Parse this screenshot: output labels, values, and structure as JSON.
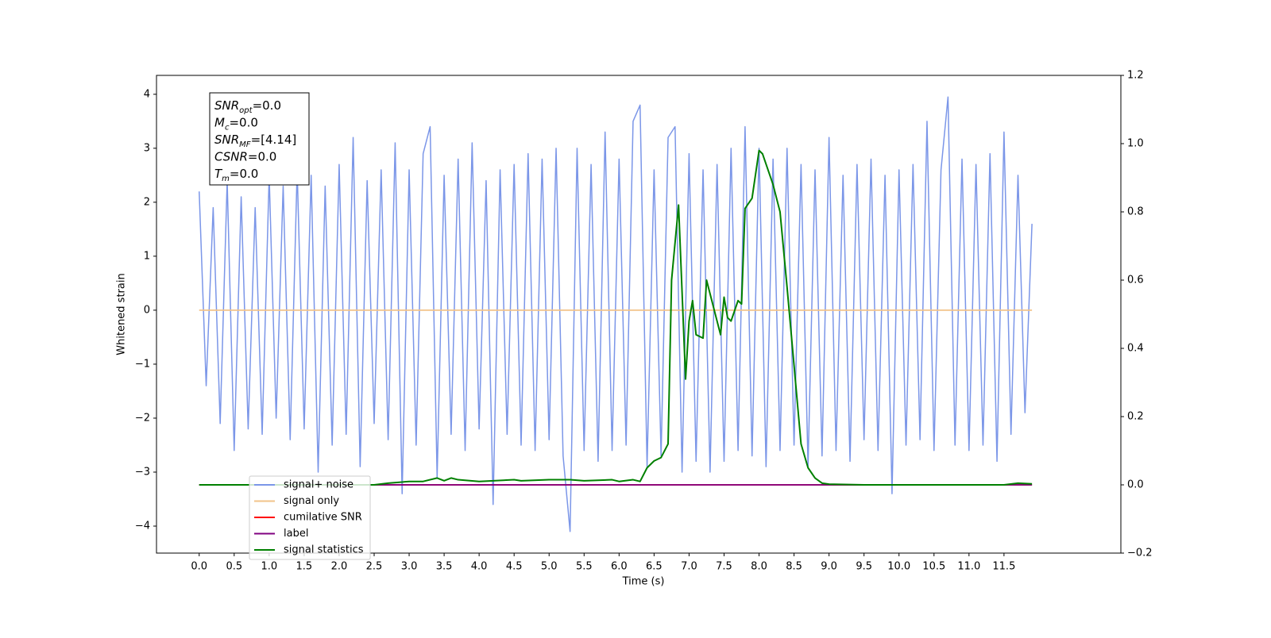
{
  "chart_data": {
    "type": "line",
    "xlabel": "Time (s)",
    "ylabel": "Whitened strain",
    "xlim": [
      -0.61,
      13.17
    ],
    "ylim": [
      -4.5,
      4.35
    ],
    "y2lim": [
      -0.2,
      1.2
    ],
    "xticks": [
      {
        "value": 0,
        "label": "0.0"
      },
      0.5,
      {
        "value": 1,
        "label": "1.0"
      },
      1.5,
      {
        "value": 2,
        "label": "2.0"
      },
      2.5,
      {
        "value": 3,
        "label": "3.0"
      },
      3.5,
      {
        "value": 4,
        "label": "4.0"
      },
      4.5,
      {
        "value": 5,
        "label": "5.0"
      },
      5.5,
      {
        "value": 6,
        "label": "6.0"
      },
      6.5,
      {
        "value": 7,
        "label": "7.0"
      },
      7.5,
      {
        "value": 8,
        "label": "8.0"
      },
      8.5,
      {
        "value": 9,
        "label": "9.0"
      },
      9.5,
      {
        "value": 10,
        "label": "10.0"
      },
      10.5,
      {
        "value": 11,
        "label": "11.0"
      },
      11.5
    ],
    "yticks": [
      {
        "value": -4,
        "label": "−4"
      },
      {
        "value": -3,
        "label": "−3"
      },
      {
        "value": -2,
        "label": "−2"
      },
      {
        "value": -1,
        "label": "−1"
      },
      0,
      1,
      2,
      3,
      4
    ],
    "y2ticks": [
      {
        "value": -0.2,
        "label": "−0.2"
      },
      {
        "value": 0,
        "label": "0.0"
      },
      0.2,
      0.4,
      0.6,
      0.8,
      {
        "value": 1,
        "label": "1.0"
      },
      1.2
    ],
    "legend_loc": "lower left",
    "annotation": [
      {
        "base": "SNR",
        "sub": "opt",
        "text": "=0.0"
      },
      {
        "base": "M",
        "sub": "c",
        "text": "=0.0"
      },
      {
        "base": "SNR",
        "sub": "MF",
        "text": "=[4.14]"
      },
      {
        "base": "CSNR",
        "text": "=0.0"
      },
      {
        "base": "T",
        "sub": "m",
        "text": "=0.0"
      }
    ],
    "series": [
      {
        "name": "signal+ noise",
        "color": "#7b96e8",
        "x": [
          0,
          0.1,
          0.2,
          0.3,
          0.4,
          0.5,
          0.6,
          0.7,
          0.8,
          0.9,
          1,
          1.1,
          1.2,
          1.3,
          1.4,
          1.5,
          1.6,
          1.7,
          1.8,
          1.9,
          2,
          2.1,
          2.2,
          2.3,
          2.4,
          2.5,
          2.6,
          2.7,
          2.8,
          2.9,
          3,
          3.1,
          3.2,
          3.3,
          3.4,
          3.5,
          3.6,
          3.7,
          3.8,
          3.9,
          4,
          4.1,
          4.2,
          4.3,
          4.4,
          4.5,
          4.6,
          4.7,
          4.8,
          4.9,
          5,
          5.1,
          5.2,
          5.3,
          5.4,
          5.5,
          5.6,
          5.7,
          5.8,
          5.9,
          6,
          6.1,
          6.2,
          6.3,
          6.4,
          6.5,
          6.6,
          6.7,
          6.8,
          6.9,
          7,
          7.1,
          7.2,
          7.3,
          7.4,
          7.5,
          7.6,
          7.7,
          7.8,
          7.9,
          8,
          8.1,
          8.2,
          8.3,
          8.4,
          8.5,
          8.6,
          8.7,
          8.8,
          8.9,
          9,
          9.1,
          9.2,
          9.3,
          9.4,
          9.5,
          9.6,
          9.7,
          9.8,
          9.9,
          10,
          10.1,
          10.2,
          10.3,
          10.4,
          10.5,
          10.6,
          10.7,
          10.8,
          10.9,
          11,
          11.1,
          11.2,
          11.3,
          11.4,
          11.5,
          11.6,
          11.7,
          11.8,
          11.9
        ],
        "values": [
          2.2,
          -1.4,
          1.9,
          -2.1,
          2.4,
          -2.6,
          2.1,
          -2.2,
          1.9,
          -2.3,
          2.5,
          -2.0,
          2.3,
          -2.4,
          2.6,
          -2.2,
          2.5,
          -3.0,
          2.3,
          -2.5,
          2.7,
          -2.3,
          3.2,
          -2.9,
          2.4,
          -2.1,
          2.6,
          -2.4,
          3.1,
          -3.4,
          2.6,
          -2.5,
          2.9,
          3.4,
          -3.1,
          2.5,
          -2.3,
          2.8,
          -2.6,
          3.1,
          -2.2,
          2.4,
          -3.6,
          2.6,
          -2.3,
          2.7,
          -2.5,
          2.9,
          -2.6,
          2.8,
          -2.4,
          3.0,
          -2.7,
          -4.1,
          3.0,
          -2.6,
          2.7,
          -2.8,
          3.3,
          -2.6,
          2.8,
          -2.5,
          3.5,
          3.8,
          -2.9,
          2.6,
          -2.7,
          3.2,
          3.4,
          -3.0,
          2.9,
          -2.8,
          2.6,
          -3.0,
          2.7,
          -2.8,
          3.0,
          -2.6,
          3.4,
          -2.7,
          3.0,
          -2.9,
          2.8,
          -2.6,
          3.0,
          -2.5,
          2.7,
          -2.9,
          2.6,
          -2.7,
          3.2,
          -2.6,
          2.5,
          -2.8,
          2.7,
          -2.4,
          2.8,
          -2.6,
          2.5,
          -3.4,
          2.6,
          -2.5,
          2.7,
          -2.4,
          3.5,
          -2.6,
          2.6,
          3.95,
          -2.5,
          2.8,
          -2.6,
          2.7,
          -2.5,
          2.9,
          -2.8,
          3.3,
          -2.3,
          2.5,
          -1.9,
          1.6
        ]
      },
      {
        "name": "signal only",
        "color": "#f2c38a",
        "x": [
          0,
          11.9
        ],
        "values": [
          0,
          0
        ]
      },
      {
        "name": "cumilative SNR",
        "color": "#ff0000",
        "axis": "y2",
        "x": [
          0,
          11.9
        ],
        "values": [
          0,
          0
        ]
      },
      {
        "name": "label",
        "color": "#800080",
        "axis": "y2",
        "x": [
          0,
          11.9
        ],
        "values": [
          0,
          0
        ]
      },
      {
        "name": "signal statistics",
        "color": "#008000",
        "axis": "y2",
        "x": [
          0,
          0.5,
          1,
          1.5,
          2,
          2.5,
          2.7,
          3.0,
          3.2,
          3.4,
          3.5,
          3.6,
          3.7,
          4.0,
          4.5,
          4.6,
          5.0,
          5.3,
          5.5,
          5.9,
          6.0,
          6.2,
          6.3,
          6.4,
          6.5,
          6.6,
          6.7,
          6.75,
          6.85,
          6.95,
          7.0,
          7.05,
          7.1,
          7.2,
          7.25,
          7.3,
          7.4,
          7.45,
          7.5,
          7.55,
          7.6,
          7.7,
          7.75,
          7.8,
          7.9,
          8.0,
          8.05,
          8.1,
          8.2,
          8.3,
          8.4,
          8.5,
          8.6,
          8.7,
          8.8,
          8.9,
          9.0,
          9.5,
          11.5,
          11.7,
          11.9
        ],
        "values": [
          0,
          0,
          0,
          0,
          0,
          0,
          0.005,
          0.01,
          0.01,
          0.02,
          0.012,
          0.02,
          0.015,
          0.01,
          0.015,
          0.012,
          0.015,
          0.015,
          0.012,
          0.015,
          0.01,
          0.015,
          0.01,
          0.05,
          0.07,
          0.08,
          0.12,
          0.6,
          0.82,
          0.31,
          0.48,
          0.54,
          0.44,
          0.43,
          0.6,
          0.56,
          0.48,
          0.44,
          0.55,
          0.49,
          0.48,
          0.54,
          0.53,
          0.81,
          0.84,
          0.98,
          0.97,
          0.94,
          0.88,
          0.8,
          0.58,
          0.35,
          0.12,
          0.05,
          0.02,
          0.005,
          0.002,
          0,
          0,
          0.005,
          0.003
        ]
      }
    ]
  }
}
